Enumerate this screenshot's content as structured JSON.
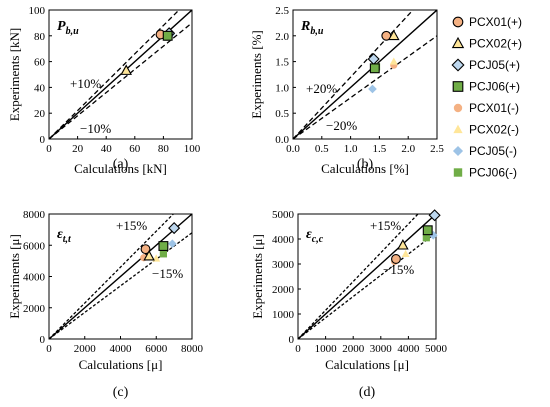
{
  "legend": [
    {
      "name": "PCX01(+)",
      "marker": "circle",
      "fill": "#F4B183",
      "stroke": "#000000"
    },
    {
      "name": "PCX02(+)",
      "marker": "triangle",
      "fill": "#FFE699",
      "stroke": "#000000"
    },
    {
      "name": "PCJ05(+)",
      "marker": "diamond",
      "fill": "#BDD7EE",
      "stroke": "#000000"
    },
    {
      "name": "PCJ06(+)",
      "marker": "square",
      "fill": "#70AD47",
      "stroke": "#000000"
    },
    {
      "name": "PCX01(-)",
      "marker": "circle",
      "fill": "#F4B183",
      "stroke": "none"
    },
    {
      "name": "PCX02(-)",
      "marker": "triangle",
      "fill": "#FFE699",
      "stroke": "none"
    },
    {
      "name": "PCJ05(-)",
      "marker": "diamond",
      "fill": "#9DC3E6",
      "stroke": "none"
    },
    {
      "name": "PCJ06(-)",
      "marker": "square",
      "fill": "#70AD47",
      "stroke": "none"
    }
  ],
  "chart_data": [
    {
      "type": "scatter",
      "caption": "(a)",
      "title_main": "P",
      "title_sub": "b,u",
      "xlabel": "Calculations [kN]",
      "ylabel": "Experiments [kN]",
      "xlim": [
        0,
        100
      ],
      "ylim": [
        0,
        100
      ],
      "xticks": [
        0,
        20,
        40,
        60,
        80,
        100
      ],
      "yticks": [
        0,
        20,
        40,
        60,
        80,
        100
      ],
      "xtick_labels": [
        "0",
        "20",
        "40",
        "60",
        "80",
        "100"
      ],
      "ytick_labels": [
        "0",
        "20",
        "40",
        "60",
        "80",
        "100"
      ],
      "bounds": [
        1.1,
        0.9
      ],
      "annotations": [
        "+10%",
        "−10%"
      ],
      "points": [
        {
          "series": "PCX01(+)",
          "x": 78,
          "y": 81
        },
        {
          "series": "PCX02(+)",
          "x": 54,
          "y": 53
        },
        {
          "series": "PCJ05(+)",
          "x": 84,
          "y": 82
        },
        {
          "series": "PCJ06(+)",
          "x": 83,
          "y": 80
        },
        {
          "series": "PCX01(-)",
          "x": 77,
          "y": 81
        },
        {
          "series": "PCX02(-)",
          "x": 53,
          "y": 53
        },
        {
          "series": "PCJ05(-)",
          "x": 85,
          "y": 81
        },
        {
          "series": "PCJ06(-)",
          "x": 83,
          "y": 79
        }
      ]
    },
    {
      "type": "scatter",
      "caption": "(b)",
      "title_main": "R",
      "title_sub": "b,u",
      "xlabel": "Calculations [%]",
      "ylabel": "Experiments [%]",
      "xlim": [
        0,
        2.5
      ],
      "ylim": [
        0,
        2.5
      ],
      "xticks": [
        0,
        0.5,
        1.0,
        1.5,
        2.0,
        2.5
      ],
      "yticks": [
        0,
        0.5,
        1.0,
        1.5,
        2.0,
        2.5
      ],
      "xtick_labels": [
        "0.0",
        "0.5",
        "1.0",
        "1.5",
        "2.0",
        "2.5"
      ],
      "ytick_labels": [
        "0.0",
        "0.5",
        "1.0",
        "1.5",
        "2.0",
        "2.5"
      ],
      "bounds": [
        1.2,
        0.8
      ],
      "annotations": [
        "+20%",
        "−20%"
      ],
      "points": [
        {
          "series": "PCX01(+)",
          "x": 1.62,
          "y": 2.0
        },
        {
          "series": "PCX02(+)",
          "x": 1.75,
          "y": 2.0
        },
        {
          "series": "PCJ05(+)",
          "x": 1.4,
          "y": 1.55
        },
        {
          "series": "PCJ06(+)",
          "x": 1.42,
          "y": 1.37
        },
        {
          "series": "PCX01(-)",
          "x": 1.75,
          "y": 1.43
        },
        {
          "series": "PCX02(-)",
          "x": 1.75,
          "y": 1.5
        },
        {
          "series": "PCJ05(-)",
          "x": 1.38,
          "y": 0.97
        },
        {
          "series": "PCJ06(-)",
          "x": 1.45,
          "y": 1.4
        }
      ]
    },
    {
      "type": "scatter",
      "caption": "(c)",
      "title_main": "ε",
      "title_sub": "t,t",
      "xlabel": "Calculations [μ]",
      "ylabel": "Experiments [μ]",
      "xlim": [
        0,
        8000
      ],
      "ylim": [
        0,
        8000
      ],
      "xticks": [
        0,
        2000,
        4000,
        6000,
        8000
      ],
      "yticks": [
        0,
        2000,
        4000,
        6000,
        8000
      ],
      "xtick_labels": [
        "0",
        "2000",
        "4000",
        "6000",
        "8000"
      ],
      "ytick_labels": [
        "0",
        "2000",
        "4000",
        "6000",
        "8000"
      ],
      "bounds": [
        1.15,
        0.85
      ],
      "annotations": [
        "+15%",
        "−15%"
      ],
      "points": [
        {
          "series": "PCX01(+)",
          "x": 5400,
          "y": 5750
        },
        {
          "series": "PCX02(+)",
          "x": 5600,
          "y": 5300
        },
        {
          "series": "PCJ05(+)",
          "x": 7000,
          "y": 7100
        },
        {
          "series": "PCJ06(+)",
          "x": 6400,
          "y": 5950
        },
        {
          "series": "PCX01(-)",
          "x": 5300,
          "y": 5200
        },
        {
          "series": "PCX02(-)",
          "x": 6000,
          "y": 5150
        },
        {
          "series": "PCJ05(-)",
          "x": 6900,
          "y": 6100
        },
        {
          "series": "PCJ06(-)",
          "x": 6400,
          "y": 5450
        }
      ]
    },
    {
      "type": "scatter",
      "caption": "(d)",
      "title_main": "ε",
      "title_sub": "c,c",
      "xlabel": "Calculations [μ]",
      "ylabel": "Experiments [μ]",
      "xlim": [
        0,
        5000
      ],
      "ylim": [
        0,
        5000
      ],
      "xticks": [
        0,
        1000,
        2000,
        3000,
        4000,
        5000
      ],
      "yticks": [
        0,
        1000,
        2000,
        3000,
        4000,
        5000
      ],
      "xtick_labels": [
        "0",
        "1000",
        "2000",
        "3000",
        "4000",
        "5000"
      ],
      "ytick_labels": [
        "0",
        "1000",
        "2000",
        "3000",
        "4000",
        "5000"
      ],
      "bounds": [
        1.15,
        0.85
      ],
      "annotations": [
        "+15%",
        "−15%"
      ],
      "points": [
        {
          "series": "PCX01(+)",
          "x": 3550,
          "y": 3200
        },
        {
          "series": "PCX02(+)",
          "x": 3800,
          "y": 3750
        },
        {
          "series": "PCJ05(+)",
          "x": 4950,
          "y": 4950
        },
        {
          "series": "PCJ06(+)",
          "x": 4700,
          "y": 4350
        },
        {
          "series": "PCX01(-)",
          "x": 3500,
          "y": 3100
        },
        {
          "series": "PCX02(-)",
          "x": 3900,
          "y": 3400
        },
        {
          "series": "PCJ05(-)",
          "x": 4900,
          "y": 4150
        },
        {
          "series": "PCJ06(-)",
          "x": 4650,
          "y": 4050
        }
      ]
    }
  ]
}
